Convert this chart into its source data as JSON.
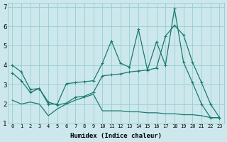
{
  "xlabel": "Humidex (Indice chaleur)",
  "bg_color": "#cce8ec",
  "grid_color": "#99ccd4",
  "line_color": "#1a7a6e",
  "xlim": [
    -0.5,
    23.5
  ],
  "ylim": [
    1,
    7.2
  ],
  "xticks": [
    0,
    1,
    2,
    3,
    4,
    5,
    6,
    7,
    8,
    9,
    10,
    11,
    12,
    13,
    14,
    15,
    16,
    17,
    18,
    19,
    20,
    21,
    22,
    23
  ],
  "yticks": [
    1,
    2,
    3,
    4,
    5,
    6,
    7
  ],
  "series1_x": [
    0,
    1,
    2,
    3,
    4,
    5,
    6,
    7,
    8,
    9,
    10,
    11,
    12,
    13,
    14,
    15,
    16,
    17,
    18,
    19,
    20,
    21,
    22,
    23
  ],
  "series1_y": [
    4.0,
    3.65,
    2.75,
    2.8,
    2.0,
    2.0,
    3.05,
    3.1,
    3.15,
    3.2,
    4.1,
    5.25,
    4.1,
    3.9,
    5.85,
    3.75,
    5.2,
    4.0,
    6.9,
    4.15,
    3.1,
    2.0,
    1.3,
    1.3
  ],
  "series2_x": [
    0,
    1,
    2,
    3,
    4,
    5,
    6,
    7,
    8,
    9,
    10,
    11,
    12,
    13,
    14,
    15,
    16,
    17,
    18,
    19,
    20,
    21,
    22,
    23
  ],
  "series2_y": [
    3.6,
    3.2,
    2.6,
    2.8,
    2.1,
    1.95,
    2.05,
    2.35,
    2.4,
    2.6,
    3.45,
    3.5,
    3.55,
    3.65,
    3.7,
    3.75,
    3.85,
    5.5,
    6.05,
    5.55,
    4.15,
    3.1,
    2.0,
    1.3
  ],
  "series3_x": [
    0,
    1,
    2,
    3,
    4,
    5,
    6,
    7,
    8,
    9,
    10,
    11,
    12,
    13,
    14,
    15,
    16,
    17,
    18,
    19,
    20,
    21,
    22,
    23
  ],
  "series3_y": [
    2.2,
    2.0,
    2.1,
    2.0,
    1.4,
    1.75,
    2.0,
    2.2,
    2.35,
    2.5,
    1.65,
    1.65,
    1.65,
    1.6,
    1.6,
    1.55,
    1.55,
    1.5,
    1.5,
    1.45,
    1.45,
    1.4,
    1.3,
    1.3
  ],
  "marker_size": 3.5,
  "linewidth": 0.9
}
